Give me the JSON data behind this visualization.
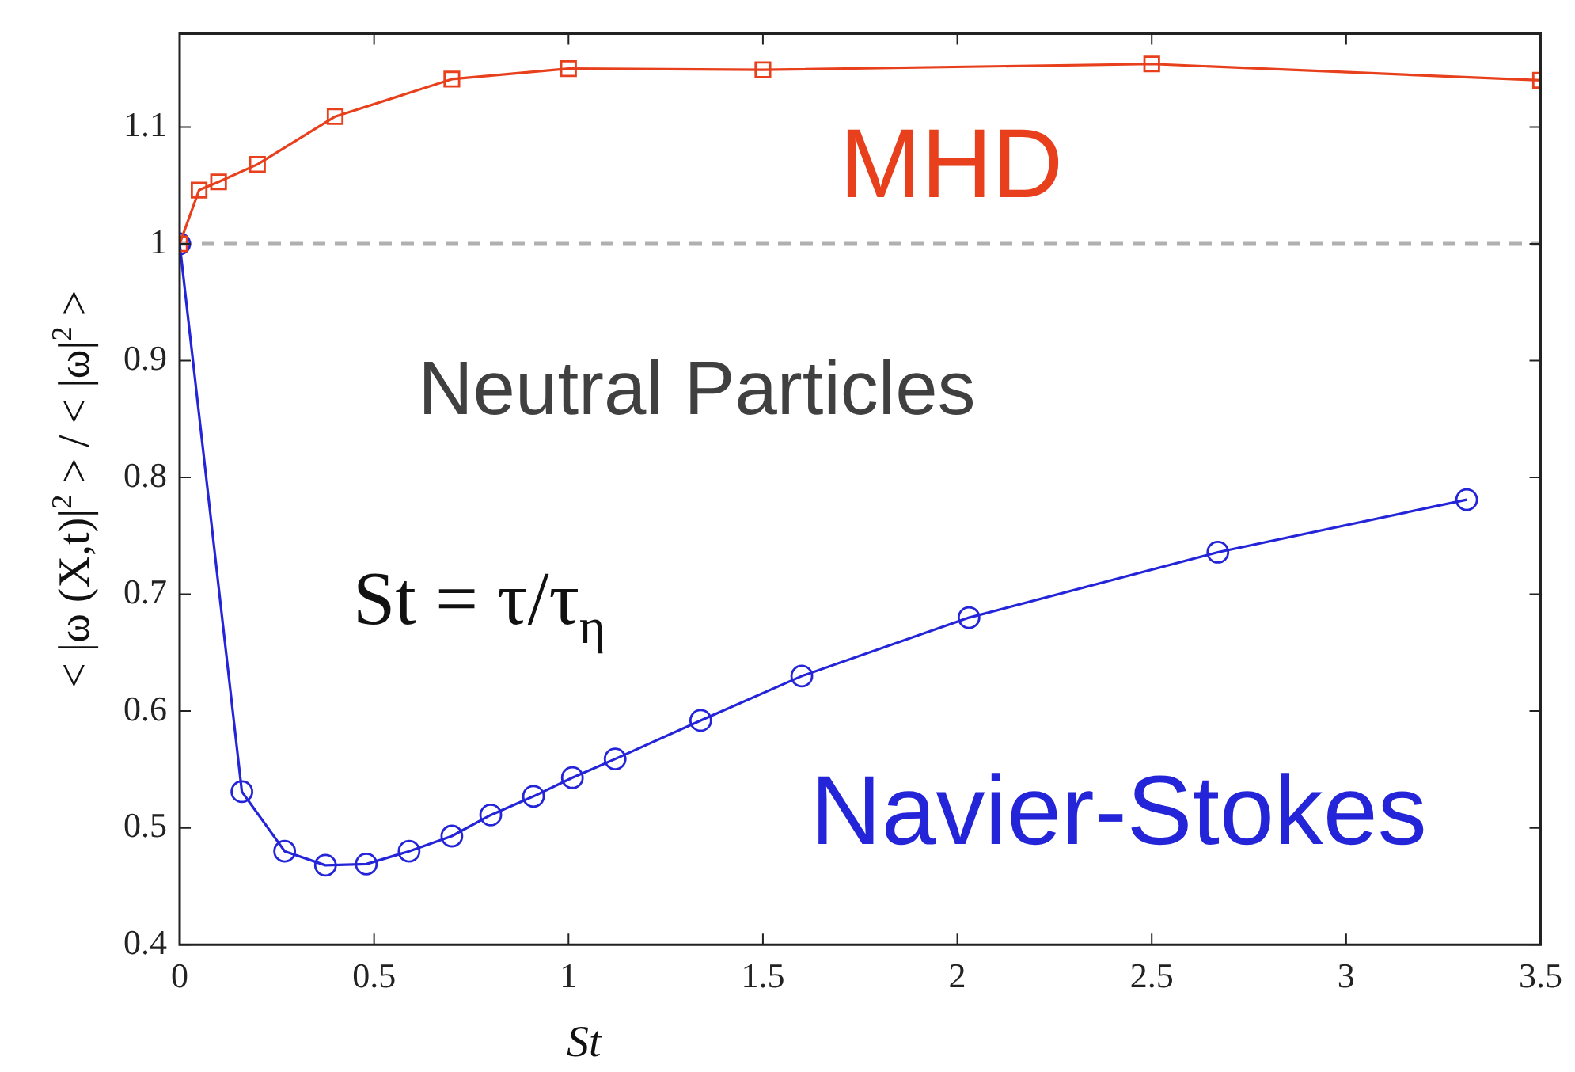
{
  "chart_data": {
    "type": "line",
    "xlabel": "St",
    "ylabel": "< |ω (X,t)|$^{2}$ > / < |ω|$^{2}$ >",
    "xlim": [
      0,
      3.5
    ],
    "xticks": [
      0,
      0.5,
      1,
      1.5,
      2,
      2.5,
      3,
      3.5
    ],
    "ylim": [
      0.4,
      1.18
    ],
    "yticks": [
      0.4,
      0.5,
      0.6,
      0.7,
      0.8,
      0.9,
      1,
      1.1
    ],
    "grid": false,
    "legend": false,
    "series": [
      {
        "name": "MHD",
        "color": "#e8401c",
        "marker": "square",
        "x": [
          0,
          0.05,
          0.1,
          0.2,
          0.4,
          0.7,
          1.0,
          1.5,
          2.5,
          3.5
        ],
        "values": [
          1.0,
          1.046,
          1.053,
          1.068,
          1.109,
          1.141,
          1.15,
          1.149,
          1.154,
          1.14
        ]
      },
      {
        "name": "Navier-Stokes",
        "color": "#2424d8",
        "marker": "circle",
        "x": [
          0,
          0.16,
          0.27,
          0.375,
          0.48,
          0.59,
          0.7,
          0.8,
          0.91,
          1.01,
          1.12,
          1.34,
          1.6,
          2.03,
          2.67,
          3.31
        ],
        "values": [
          1.0,
          0.531,
          0.48,
          0.468,
          0.469,
          0.48,
          0.493,
          0.511,
          0.527,
          0.543,
          0.559,
          0.592,
          0.63,
          0.68,
          0.736,
          0.781
        ]
      }
    ],
    "ref_lines": [
      {
        "axis": "y",
        "value": 1,
        "color": "#b0b0b0",
        "line_style": "dashed"
      }
    ],
    "annotations": [
      "Neutral Particles",
      "St = τ/τ$_{η}$"
    ]
  }
}
